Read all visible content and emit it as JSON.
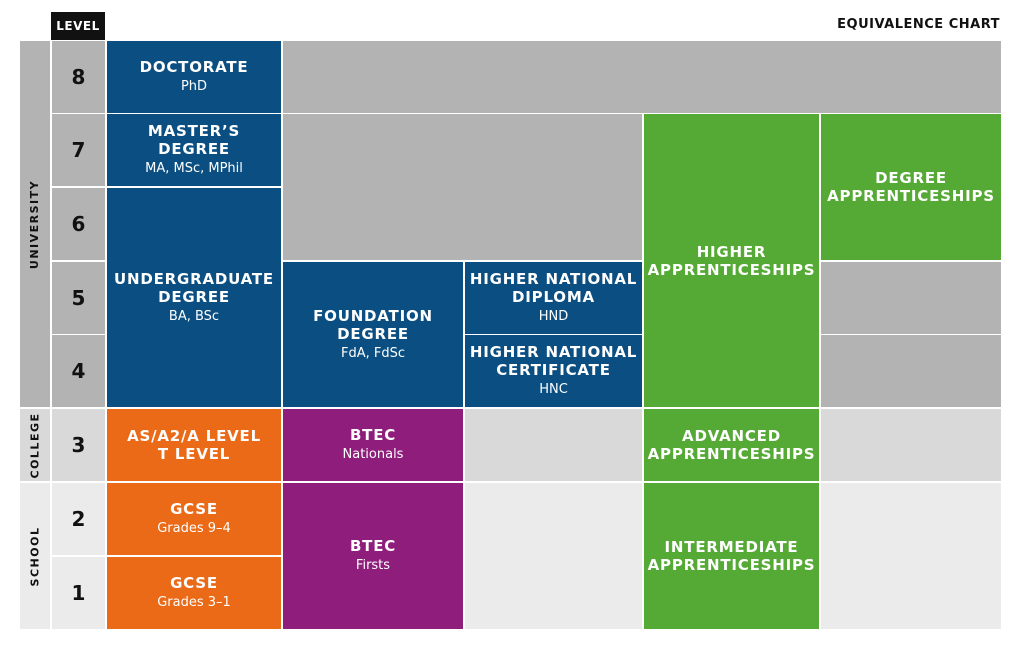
{
  "header": {
    "level_label": "LEVEL",
    "chart_title": "EQUIVALENCE CHART"
  },
  "sections": {
    "university": "UNIVERSITY",
    "college": "COLLEGE",
    "school": "SCHOOL"
  },
  "levels": [
    "8",
    "7",
    "6",
    "5",
    "4",
    "3",
    "2",
    "1"
  ],
  "qualifications": {
    "doctorate": {
      "title": "DOCTORATE",
      "sub": "PhD"
    },
    "masters": {
      "title": "MASTER’S DEGREE",
      "sub": "MA, MSc, MPhil"
    },
    "undergraduate": {
      "title_line1": "UNDERGRADUATE",
      "title_line2": "DEGREE",
      "sub": "BA, BSc"
    },
    "foundation": {
      "title_line1": "FOUNDATION",
      "title_line2": "DEGREE",
      "sub": "FdA, FdSc"
    },
    "hnd": {
      "title_line1": "HIGHER NATIONAL",
      "title_line2": "DIPLOMA",
      "sub": "HND"
    },
    "hnc": {
      "title_line1": "HIGHER NATIONAL",
      "title_line2": "CERTIFICATE",
      "sub": "HNC"
    },
    "higher_app": {
      "title_line1": "HIGHER",
      "title_line2": "APPRENTICESHIPS"
    },
    "degree_app": {
      "title_line1": "DEGREE",
      "title_line2": "APPRENTICESHIPS"
    },
    "alevel": {
      "title_line1": "AS/A2/A LEVEL",
      "title_line2": "T LEVEL"
    },
    "btec_nationals": {
      "title": "BTEC",
      "sub": "Nationals"
    },
    "advanced_app": {
      "title_line1": "ADVANCED",
      "title_line2": "APPRENTICESHIPS"
    },
    "gcse_high": {
      "title": "GCSE",
      "sub": "Grades 9–4"
    },
    "gcse_low": {
      "title": "GCSE",
      "sub": "Grades 3–1"
    },
    "btec_firsts": {
      "title": "BTEC",
      "sub": "Firsts"
    },
    "intermediate_app": {
      "title_line1": "INTERMEDIATE",
      "title_line2": "APPRENTICESHIPS"
    }
  },
  "colors": {
    "university_blue": "#0b4f82",
    "school_orange": "#ea6a17",
    "btec_purple": "#8e1d7c",
    "apprenticeship_green": "#55a935"
  }
}
